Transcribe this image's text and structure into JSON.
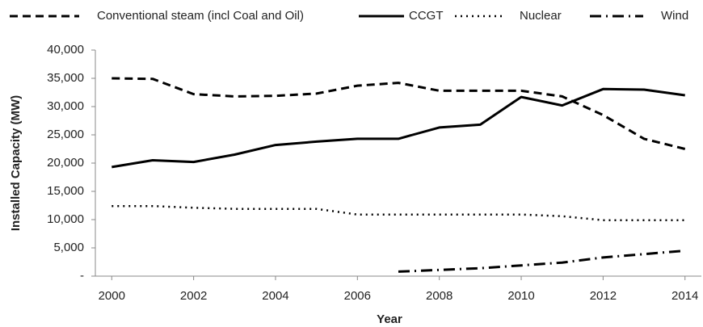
{
  "chart_data": {
    "type": "line",
    "x_label": "Year",
    "y_label": "Installed Capacity (MW)",
    "x": [
      2000,
      2001,
      2002,
      2003,
      2004,
      2005,
      2006,
      2007,
      2008,
      2009,
      2010,
      2011,
      2012,
      2013,
      2014
    ],
    "xlim": [
      1999.6,
      2014.4
    ],
    "xticks": [
      2000,
      2002,
      2004,
      2006,
      2008,
      2010,
      2012,
      2014
    ],
    "ylim": [
      0,
      40000
    ],
    "yticks": [
      {
        "value": 0,
        "label": "-"
      },
      {
        "value": 5000,
        "label": "5,000"
      },
      {
        "value": 10000,
        "label": "10,000"
      },
      {
        "value": 15000,
        "label": "15,000"
      },
      {
        "value": 20000,
        "label": "20,000"
      },
      {
        "value": 25000,
        "label": "25,000"
      },
      {
        "value": 30000,
        "label": "30,000"
      },
      {
        "value": 35000,
        "label": "35,000"
      },
      {
        "value": 40000,
        "label": "40,000"
      }
    ],
    "grid": false,
    "legend": "top",
    "series": [
      {
        "name": "Conventional steam (incl Coal and Oil)",
        "color": "#000000",
        "dash": "dashed",
        "values": [
          35000,
          34900,
          32200,
          31800,
          31900,
          32300,
          33700,
          34200,
          32800,
          32800,
          32800,
          31800,
          28500,
          24300,
          22500
        ]
      },
      {
        "name": "CCGT",
        "color": "#000000",
        "dash": "solid",
        "values": [
          19300,
          20500,
          20200,
          21500,
          23200,
          23800,
          24300,
          24300,
          26300,
          26800,
          31700,
          30200,
          33100,
          33000,
          32000
        ]
      },
      {
        "name": "Nuclear",
        "color": "#000000",
        "dash": "dotted",
        "values": [
          12400,
          12400,
          12100,
          11900,
          11900,
          11900,
          10900,
          10900,
          10900,
          10900,
          10900,
          10600,
          9900,
          9900,
          9900
        ]
      },
      {
        "name": "Wind",
        "color": "#000000",
        "dash": "dashdot",
        "values": [
          null,
          null,
          null,
          null,
          null,
          null,
          null,
          800,
          1100,
          1400,
          1900,
          2400,
          3300,
          3900,
          4500
        ]
      }
    ]
  }
}
